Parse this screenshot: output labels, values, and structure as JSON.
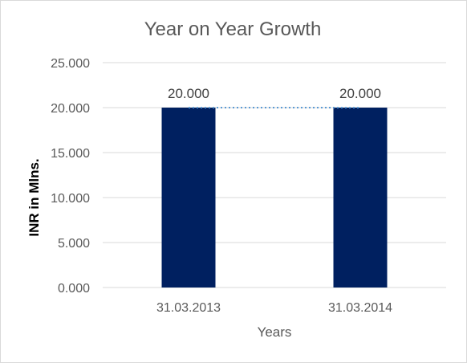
{
  "chart_data": {
    "type": "bar",
    "title": "Year on Year Growth",
    "xlabel": "Years",
    "ylabel": "INR in Mlns.",
    "categories": [
      "31.03.2013",
      "31.03.2014"
    ],
    "values": [
      20,
      20
    ],
    "value_labels": [
      "20.000",
      "20.000"
    ],
    "ylim": [
      0,
      25
    ],
    "yticks": [
      0,
      5,
      10,
      15,
      20,
      25
    ],
    "ytick_labels": [
      "0.000",
      "5.000",
      "10.000",
      "15.000",
      "20.000",
      "25.000"
    ],
    "grid": true,
    "legend": "none",
    "bar_color": "#002060",
    "trendline": {
      "style": "dotted",
      "color": "#5b9bd5",
      "values": [
        20,
        20
      ]
    }
  }
}
